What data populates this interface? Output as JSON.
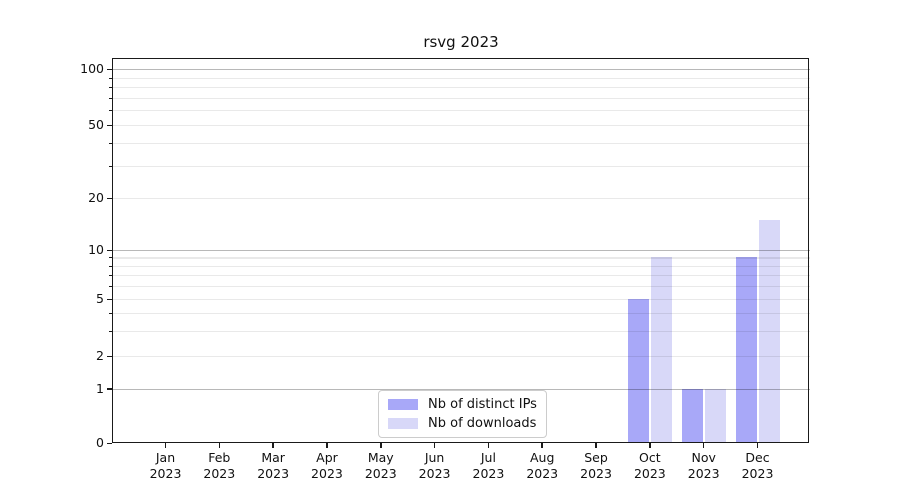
{
  "title": "rsvg 2023",
  "chart_data": {
    "type": "bar",
    "title": "rsvg 2023",
    "xlabel": "",
    "ylabel": "",
    "categories": [
      "Jan",
      "Feb",
      "Mar",
      "Apr",
      "May",
      "Jun",
      "Jul",
      "Aug",
      "Sep",
      "Oct",
      "Nov",
      "Dec"
    ],
    "category_year": "2023",
    "series": [
      {
        "name": "Nb of distinct IPs",
        "color": "#a8a8f8",
        "values": [
          0,
          0,
          0,
          0,
          0,
          0,
          0,
          0,
          0,
          5,
          1,
          9
        ]
      },
      {
        "name": "Nb of downloads",
        "color": "#d8d8f8",
        "values": [
          0,
          0,
          0,
          0,
          0,
          0,
          0,
          0,
          0,
          9,
          1,
          15
        ]
      }
    ],
    "yscale": "symlog",
    "ylim": [
      0,
      110
    ],
    "yticks": [
      100,
      50,
      20,
      10,
      5,
      2,
      1,
      0
    ],
    "major_gridlines": [
      1,
      10,
      100
    ],
    "minor_gridlines": [
      2,
      3,
      4,
      5,
      6,
      7,
      8,
      9,
      20,
      30,
      40,
      50,
      60,
      70,
      80,
      90
    ],
    "minor_tick_values": [
      3,
      4,
      6,
      7,
      8,
      9,
      30,
      40,
      60,
      70,
      80,
      90
    ],
    "grid": true,
    "legend_position": "lower center"
  },
  "legend": {
    "items": [
      {
        "label": "Nb of distinct IPs",
        "color": "#a8a8f8"
      },
      {
        "label": "Nb of downloads",
        "color": "#d8d8f8"
      }
    ]
  }
}
